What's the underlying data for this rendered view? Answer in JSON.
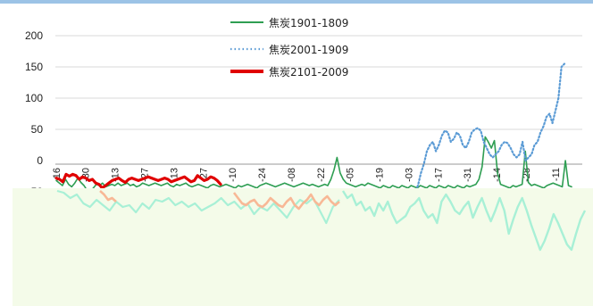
{
  "colors": {
    "series_1901_1809": "#2e9e52",
    "series_2001_1909": "#5b9bd5",
    "series_2101_2009": "#e00000",
    "overlay_fill": "#f4fbe9",
    "overlay_mint": "#a8f0d6",
    "overlay_peach": "#f8b896",
    "gridline": "#d9d9d9",
    "top_rule": "#9cc3e6"
  },
  "chart_data": {
    "type": "line",
    "title": "",
    "xlabel": "",
    "ylabel": "",
    "ylim": [
      -50,
      200
    ],
    "y_ticks": [
      200,
      150,
      100,
      50,
      0,
      -50
    ],
    "x_tick_labels": [
      "-16",
      "-30",
      "-13",
      "-27",
      "-13",
      "-27",
      "-10",
      "-24",
      "-08",
      "-22",
      "-05",
      "-19",
      "-03",
      "-17",
      "-31",
      "-14",
      "-28",
      "-11"
    ],
    "grid": true,
    "legend_position": "top-center",
    "legend": [
      {
        "label": "焦炭1901-1809",
        "style": "solid-thin"
      },
      {
        "label": "焦炭2001-1909",
        "style": "dotted"
      },
      {
        "label": "焦炭2101-2009",
        "style": "solid-thick"
      }
    ],
    "series": [
      {
        "name": "焦炭1901-1809",
        "values": [
          -32,
          -36,
          -40,
          -30,
          -38,
          -42,
          -36,
          -28,
          -35,
          -40,
          -48,
          -50,
          -44,
          -38,
          -40,
          -36,
          -42,
          -40,
          -38,
          -40,
          -36,
          -40,
          -38,
          -36,
          -40,
          -38,
          -42,
          -40,
          -36,
          -38,
          -40,
          -38,
          -36,
          -38,
          -40,
          -38,
          -36,
          -40,
          -42,
          -38,
          -40,
          -38,
          -36,
          -40,
          -42,
          -40,
          -38,
          -40,
          -42,
          -44,
          -40,
          -38,
          -40,
          -42,
          -40,
          -38,
          -40,
          -42,
          -44,
          -40,
          -42,
          -40,
          -38,
          -40,
          -42,
          -44,
          -40,
          -38,
          -36,
          -38,
          -40,
          -42,
          -40,
          -38,
          -36,
          -38,
          -40,
          -42,
          -40,
          -38,
          -36,
          -38,
          -40,
          -38,
          -40,
          -42,
          -40,
          -38,
          -40,
          -30,
          -15,
          5,
          -20,
          -30,
          -36,
          -38,
          -40,
          -42,
          -40,
          -38,
          -40,
          -36,
          -38,
          -40,
          -42,
          -44,
          -40,
          -42,
          -44,
          -40,
          -42,
          -44,
          -40,
          -42,
          -44,
          -40,
          -42,
          -44,
          -40,
          -42,
          -44,
          -40,
          -42,
          -44,
          -40,
          -42,
          -44,
          -40,
          -42,
          -44,
          -40,
          -42,
          -44,
          -40,
          -42,
          -40,
          -38,
          -30,
          -10,
          38,
          30,
          20,
          32,
          -20,
          -38,
          -40,
          -42,
          -44,
          -40,
          -42,
          -40,
          -38,
          15,
          -35,
          -40,
          -38,
          -40,
          -42,
          -44,
          -40,
          -38,
          -36,
          -38,
          -40,
          -42,
          0,
          -40,
          -42
        ]
      },
      {
        "name": "焦炭2001-1909",
        "values": [
          -52,
          -52,
          -52,
          -52,
          -52,
          -52,
          -52,
          -52,
          -52,
          -52,
          -52,
          -52,
          -52,
          -52,
          -52,
          -52,
          -52,
          -52,
          -52,
          -52,
          -52,
          -52,
          -52,
          -52,
          -52,
          -52,
          -52,
          -52,
          -52,
          -52,
          -52,
          -52,
          -52,
          -52,
          -52,
          -52,
          -52,
          -52,
          -52,
          -52,
          -52,
          -52,
          -52,
          -52,
          -52,
          -52,
          -52,
          -52,
          -52,
          -52,
          -52,
          -52,
          -52,
          -52,
          -52,
          -52,
          -52,
          -52,
          -52,
          -52,
          -52,
          -52,
          -52,
          -52,
          -52,
          -52,
          -52,
          -52,
          -52,
          -52,
          -52,
          -52,
          -52,
          -52,
          -52,
          -52,
          -52,
          -52,
          -52,
          -52,
          -52,
          -52,
          -52,
          -52,
          -52,
          -52,
          -52,
          -52,
          -52,
          -52,
          -52,
          -52,
          -52,
          -52,
          -52,
          -52,
          -52,
          -52,
          -52,
          -52,
          -52,
          -52,
          -52,
          -52,
          -52,
          -52,
          -52,
          -52,
          -52,
          -52,
          -52,
          -52,
          -52,
          -52,
          -52,
          -52,
          -52,
          -52,
          -52,
          -52,
          -50,
          -40,
          -20,
          -5,
          15,
          25,
          30,
          15,
          25,
          40,
          48,
          45,
          30,
          35,
          45,
          40,
          25,
          20,
          30,
          45,
          50,
          52,
          48,
          30,
          20,
          10,
          5,
          10,
          15,
          25,
          30,
          28,
          20,
          10,
          5,
          10,
          30,
          0,
          5,
          10,
          25,
          30,
          45,
          55,
          70,
          75,
          60,
          80,
          100,
          150,
          155
        ]
      },
      {
        "name": "焦炭2101-2009",
        "values": [
          -28,
          -30,
          -34,
          -22,
          -25,
          -22,
          -24,
          -30,
          -26,
          -28,
          -32,
          -30,
          -36,
          -38,
          -44,
          -40,
          -36,
          -32,
          -30,
          -28,
          -32,
          -35,
          -30,
          -28,
          -30,
          -32,
          -30,
          -28,
          -26,
          -28,
          -30,
          -32,
          -30,
          -28,
          -30,
          -34,
          -32,
          -30,
          -28,
          -26,
          -30,
          -34,
          -32,
          -24,
          -28,
          -32,
          -30,
          -26,
          -28,
          -32,
          -38
        ]
      }
    ]
  }
}
